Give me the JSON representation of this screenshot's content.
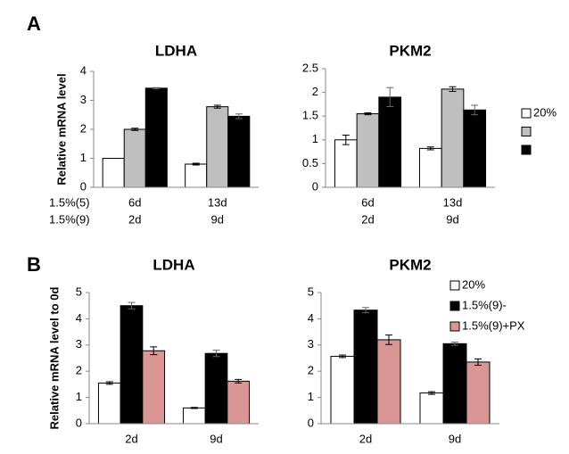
{
  "panels": [
    "A",
    "B"
  ],
  "row_labels": [
    "1.5%(5)",
    "1.5%(9)"
  ],
  "chart_data": [
    {
      "type": "bar",
      "title": "LDHA",
      "ylabel": "Relative mRNA level",
      "categories": [
        "6d",
        "13d"
      ],
      "categories2": [
        "2d",
        "9d"
      ],
      "series": [
        {
          "name": "20%",
          "color": "#ffffff",
          "values": [
            1.0,
            0.8
          ],
          "errors": [
            0,
            0.03
          ]
        },
        {
          "name": null,
          "color": "#bfbfbf",
          "values": [
            2.0,
            2.78
          ],
          "errors": [
            0.04,
            0.05
          ]
        },
        {
          "name": null,
          "color": "#000000",
          "values": [
            3.42,
            2.45
          ],
          "errors": [
            0.02,
            0.08
          ]
        }
      ],
      "ylim": [
        0,
        4
      ],
      "yticks": [
        0,
        1,
        2,
        3,
        4
      ]
    },
    {
      "type": "bar",
      "title": "PKM2",
      "categories": [
        "6d",
        "13d"
      ],
      "categories2": [
        "2d",
        "9d"
      ],
      "series": [
        {
          "name": "20%",
          "color": "#ffffff",
          "values": [
            1.0,
            0.82
          ],
          "errors": [
            0.1,
            0.03
          ]
        },
        {
          "name": null,
          "color": "#bfbfbf",
          "values": [
            1.55,
            2.07
          ],
          "errors": [
            0.02,
            0.05
          ]
        },
        {
          "name": null,
          "color": "#000000",
          "values": [
            1.9,
            1.63
          ],
          "errors": [
            0.2,
            0.1
          ]
        }
      ],
      "ylim": [
        0,
        2.5
      ],
      "yticks": [
        0,
        0.5,
        1,
        1.5,
        2,
        2.5
      ],
      "legend": "right"
    },
    {
      "type": "bar",
      "title": "LDHA",
      "ylabel": "Relative mRNA level to 0d",
      "categories": [
        "2d",
        "9d"
      ],
      "series": [
        {
          "name": "20%",
          "color": "#ffffff",
          "values": [
            1.55,
            0.6
          ],
          "errors": [
            0.05,
            0.02
          ]
        },
        {
          "name": "1.5%(9)-",
          "color": "#000000",
          "values": [
            4.5,
            2.68
          ],
          "errors": [
            0.12,
            0.12
          ]
        },
        {
          "name": "1.5%(9)+PX",
          "color": "#d99694",
          "values": [
            2.78,
            1.62
          ],
          "errors": [
            0.15,
            0.07
          ]
        }
      ],
      "ylim": [
        0,
        5
      ],
      "yticks": [
        0,
        1,
        2,
        3,
        4,
        5
      ]
    },
    {
      "type": "bar",
      "title": "PKM2",
      "categories": [
        "2d",
        "9d"
      ],
      "series": [
        {
          "name": "20%",
          "color": "#ffffff",
          "values": [
            2.57,
            1.17
          ],
          "errors": [
            0.05,
            0.05
          ]
        },
        {
          "name": "1.5%(9)-",
          "color": "#000000",
          "values": [
            4.33,
            3.05
          ],
          "errors": [
            0.1,
            0.06
          ]
        },
        {
          "name": "1.5%(9)+PX",
          "color": "#d99694",
          "values": [
            3.2,
            2.35
          ],
          "errors": [
            0.18,
            0.12
          ]
        }
      ],
      "ylim": [
        0,
        5
      ],
      "yticks": [
        0,
        1,
        2,
        3,
        4,
        5
      ],
      "legend": "top-right"
    }
  ]
}
